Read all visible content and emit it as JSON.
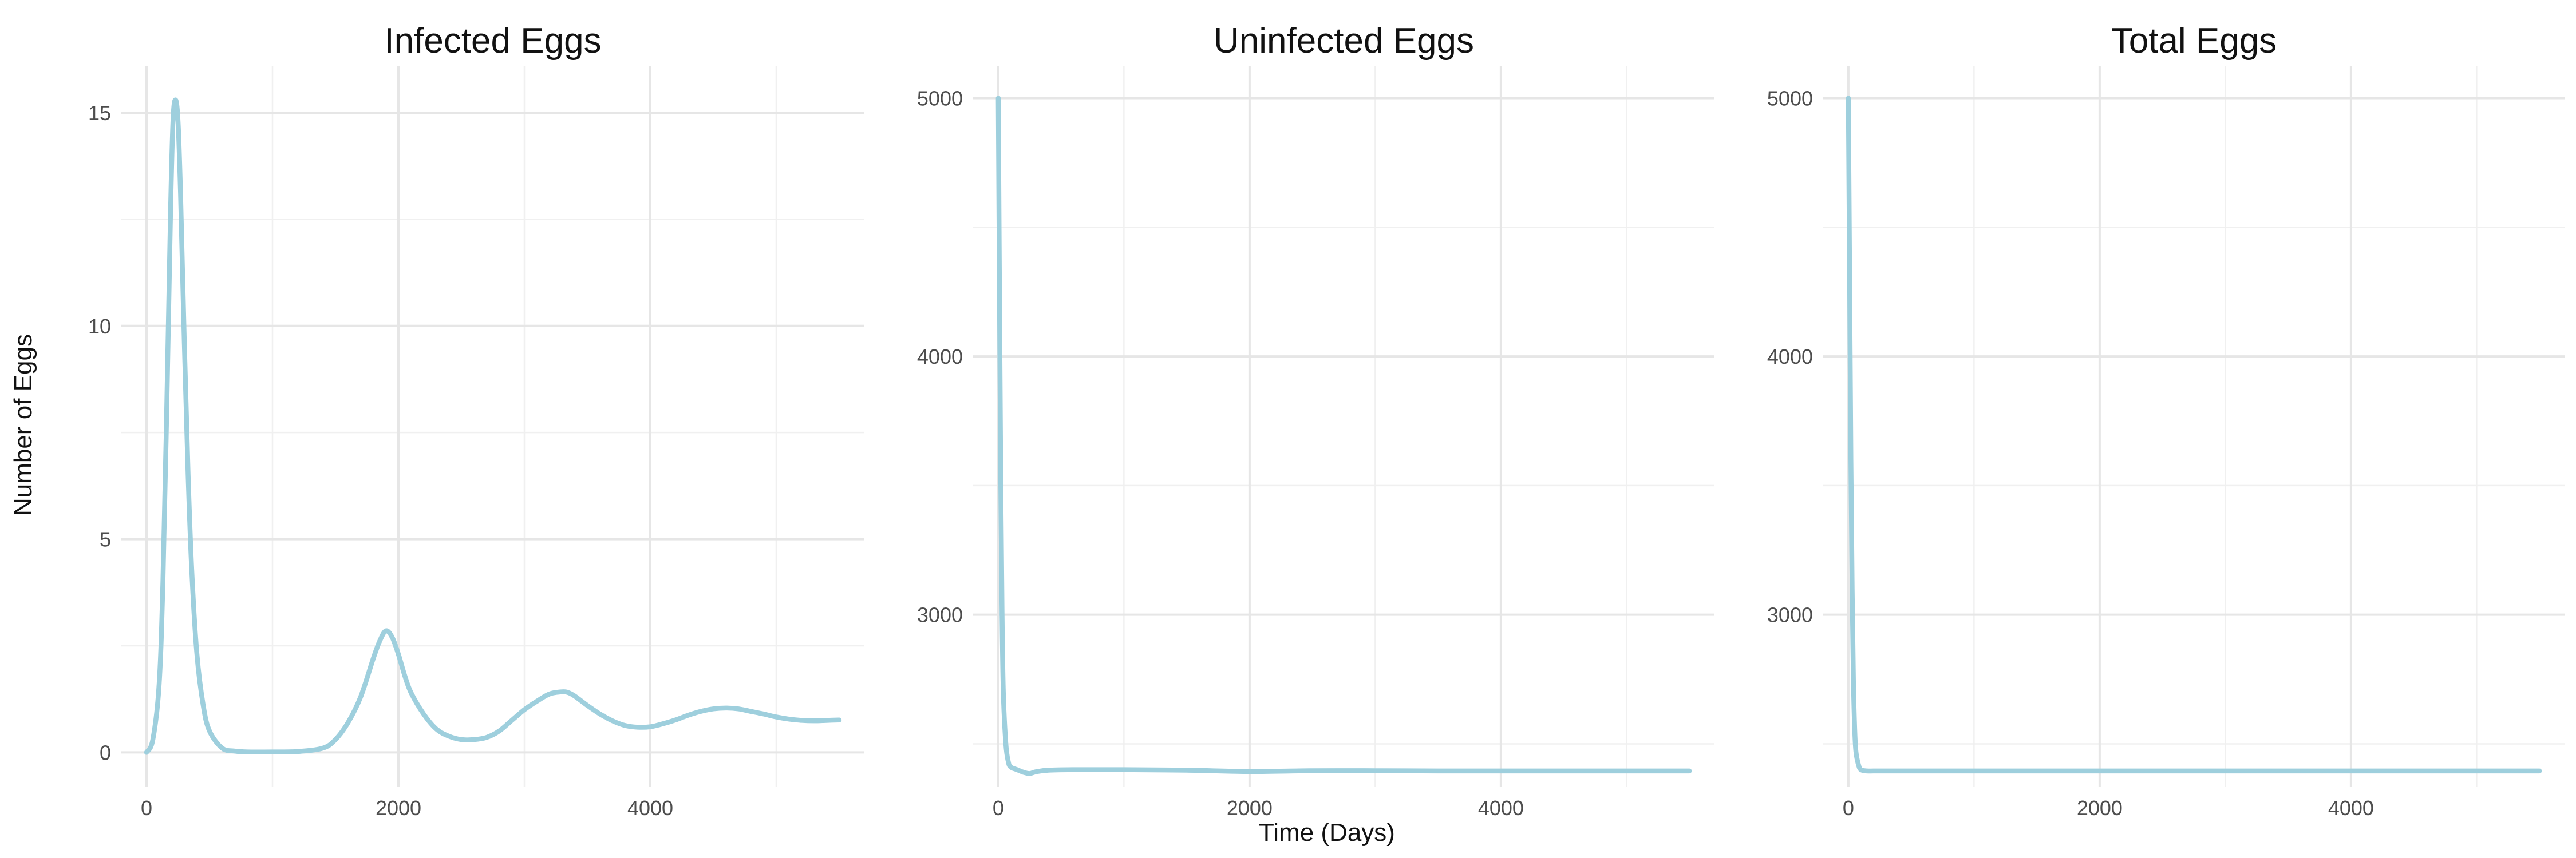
{
  "figure": {
    "xlabel": "Time (Days)",
    "ylabel": "Number of Eggs",
    "line_color": "#9ecfdd"
  },
  "chart_data": [
    {
      "type": "line",
      "title": "Infected Eggs",
      "xlim": [
        -200,
        5700
      ],
      "ylim": [
        -0.8,
        16.1
      ],
      "x_ticks": [
        0,
        2000,
        4000
      ],
      "y_ticks": [
        0,
        5,
        10,
        15
      ],
      "x_minor": [
        1000,
        3000,
        5000
      ],
      "y_minor": [
        2.5,
        7.5,
        12.5
      ],
      "grid": true,
      "series": [
        {
          "x": [
            0,
            50,
            100,
            130,
            160,
            190,
            210,
            230,
            250,
            270,
            300,
            330,
            360,
            400,
            450,
            500,
            600,
            700,
            800,
            1000,
            1200,
            1400,
            1500,
            1600,
            1700,
            1800,
            1850,
            1900,
            1950,
            2000,
            2050,
            2100,
            2200,
            2300,
            2400,
            2500,
            2600,
            2700,
            2800,
            2900,
            3000,
            3100,
            3200,
            3300,
            3350,
            3400,
            3500,
            3600,
            3700,
            3800,
            3900,
            4000,
            4100,
            4200,
            4300,
            4400,
            4500,
            4600,
            4700,
            4800,
            4900,
            5000,
            5100,
            5200,
            5300,
            5400,
            5500
          ],
          "y": [
            0,
            0.3,
            1.6,
            4.0,
            8.0,
            12.6,
            14.8,
            15.3,
            14.8,
            13.1,
            9.6,
            6.5,
            4.2,
            2.3,
            1.1,
            0.5,
            0.1,
            0.03,
            0.01,
            0.01,
            0.02,
            0.1,
            0.3,
            0.7,
            1.3,
            2.2,
            2.6,
            2.85,
            2.7,
            2.3,
            1.8,
            1.4,
            0.9,
            0.55,
            0.38,
            0.3,
            0.3,
            0.35,
            0.5,
            0.75,
            1.0,
            1.2,
            1.37,
            1.42,
            1.4,
            1.32,
            1.1,
            0.9,
            0.74,
            0.63,
            0.59,
            0.6,
            0.67,
            0.76,
            0.87,
            0.96,
            1.02,
            1.04,
            1.02,
            0.96,
            0.9,
            0.83,
            0.78,
            0.75,
            0.74,
            0.75,
            0.76
          ]
        }
      ]
    },
    {
      "type": "line",
      "title": "Uninfected Eggs",
      "xlim": [
        -200,
        5700
      ],
      "ylim": [
        2335,
        5125
      ],
      "x_ticks": [
        0,
        2000,
        4000
      ],
      "y_ticks": [
        3000,
        4000,
        5000
      ],
      "x_minor": [
        1000,
        3000,
        5000
      ],
      "y_minor": [
        2500,
        3500,
        4500
      ],
      "grid": true,
      "series": [
        {
          "x": [
            0,
            10,
            20,
            30,
            40,
            60,
            80,
            100,
            150,
            200,
            250,
            300,
            400,
            600,
            800,
            1000,
            1500,
            2000,
            2500,
            3000,
            3500,
            4000,
            4500,
            5000,
            5500
          ],
          "y": [
            5000,
            4200,
            3500,
            3000,
            2700,
            2500,
            2430,
            2410,
            2400,
            2390,
            2385,
            2392,
            2398,
            2400,
            2400,
            2400,
            2398,
            2393,
            2396,
            2396,
            2395,
            2395,
            2395,
            2395,
            2395
          ]
        }
      ]
    },
    {
      "type": "line",
      "title": "Total Eggs",
      "xlim": [
        -200,
        5700
      ],
      "ylim": [
        2335,
        5125
      ],
      "x_ticks": [
        0,
        2000,
        4000
      ],
      "y_ticks": [
        3000,
        4000,
        5000
      ],
      "x_minor": [
        1000,
        3000,
        5000
      ],
      "y_minor": [
        2500,
        3500,
        4500
      ],
      "grid": true,
      "series": [
        {
          "x": [
            0,
            10,
            20,
            30,
            40,
            50,
            60,
            80,
            100,
            150,
            200,
            300,
            500,
            1000,
            2000,
            3000,
            4000,
            5000,
            5500
          ],
          "y": [
            5000,
            4300,
            3600,
            3100,
            2750,
            2560,
            2470,
            2420,
            2400,
            2395,
            2395,
            2395,
            2395,
            2395,
            2395,
            2395,
            2395,
            2395,
            2395
          ]
        }
      ]
    }
  ]
}
